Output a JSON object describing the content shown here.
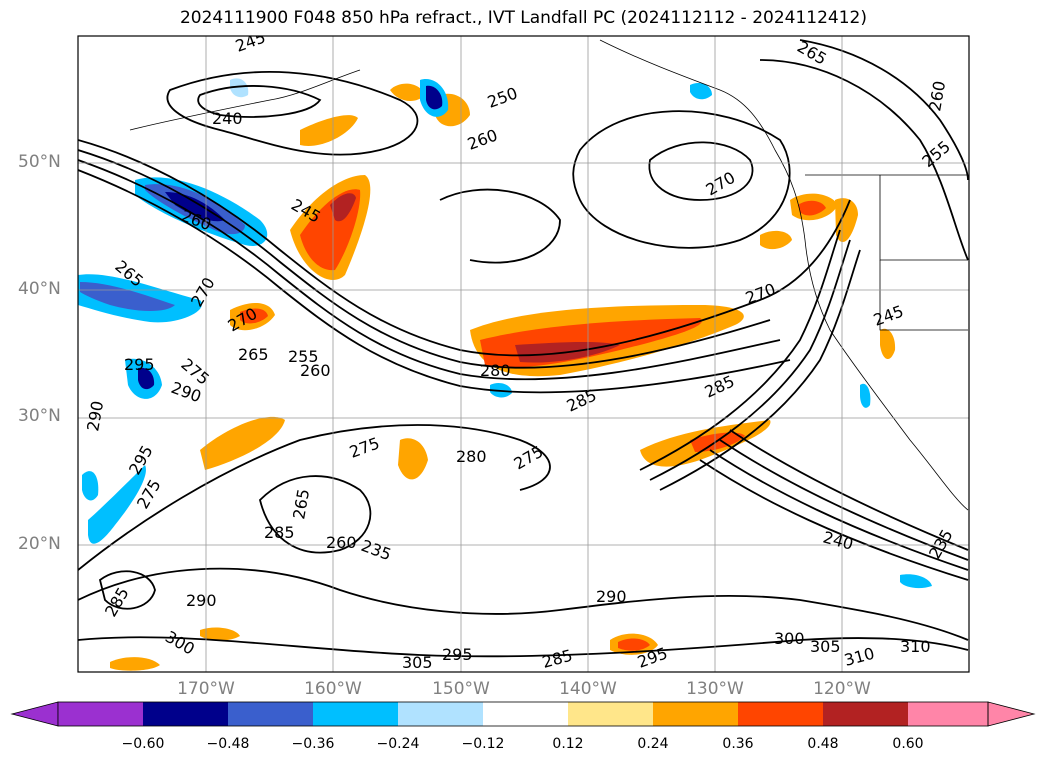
{
  "title": "2024111900 F048 850 hPa refract., IVT Landfall PC (2024112112 - 2024112412)",
  "lat_labels": [
    "50°N",
    "40°N",
    "30°N",
    "20°N"
  ],
  "lon_labels": [
    "170°W",
    "160°W",
    "150°W",
    "140°W",
    "130°W",
    "120°W"
  ],
  "colorbar": {
    "ticks": [
      "−0.60",
      "−0.48",
      "−0.36",
      "−0.24",
      "−0.12",
      "0.12",
      "0.24",
      "0.36",
      "0.48",
      "0.60"
    ],
    "colors": [
      "#9b30d0",
      "#00008b",
      "#3a5fcd",
      "#00bfff",
      "#b0e2ff",
      "#ffffff",
      "#ffe68a",
      "#ffa500",
      "#ff4500",
      "#b22222",
      "#ff85a8"
    ],
    "extend": "both",
    "orientation": "horizontal",
    "placement": "bottom"
  },
  "contour_labels": [
    "245",
    "240",
    "250",
    "260",
    "265",
    "260",
    "255",
    "270",
    "245",
    "265",
    "270",
    "270",
    "270",
    "245",
    "295",
    "265",
    "255",
    "260",
    "280",
    "285",
    "285",
    "275",
    "290",
    "290",
    "295",
    "275",
    "280",
    "275",
    "265",
    "285",
    "260",
    "235",
    "240",
    "290",
    "290",
    "300",
    "305",
    "310",
    "310",
    "275",
    "300",
    "305",
    "295",
    "285",
    "295",
    "260",
    "235",
    "285"
  ],
  "map": {
    "projection": "cylindrical",
    "lon_range": [
      -180,
      -110
    ],
    "lat_range": [
      10,
      60
    ],
    "gridlines": true,
    "coastlines": true
  }
}
